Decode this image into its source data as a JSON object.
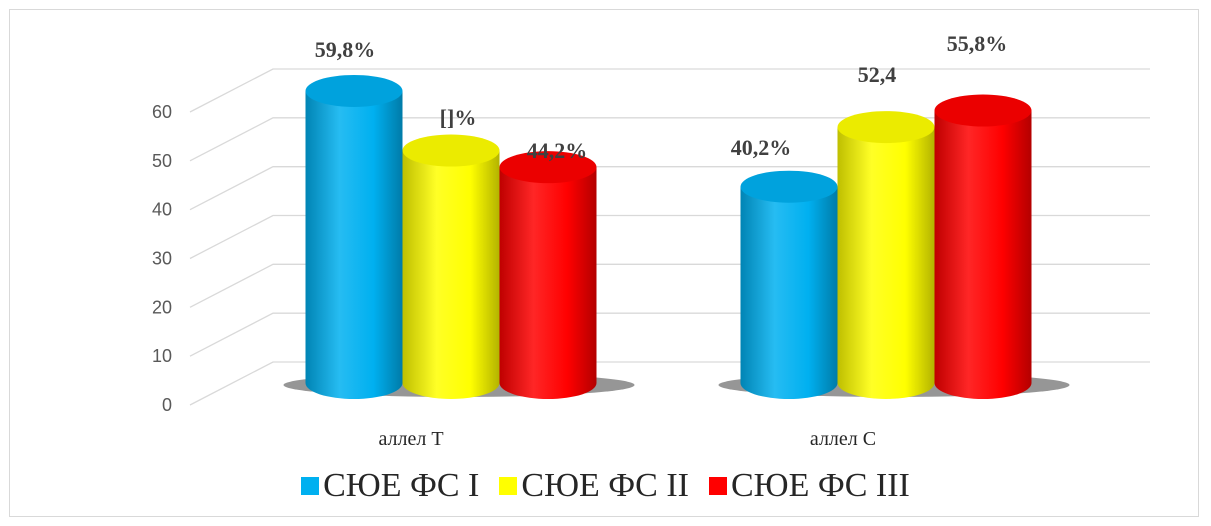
{
  "chart_data": {
    "type": "bar",
    "style": "3d-cylinder",
    "categories": [
      "аллел Т",
      "аллел С"
    ],
    "series": [
      {
        "name": "СЮЕ ФС I",
        "color": "#00b0f0",
        "values": [
          59.8,
          40.2
        ],
        "labels": [
          "59,8%",
          "40,2%"
        ]
      },
      {
        "name": "СЮЕ ФС II",
        "color": "#ffff00",
        "values": [
          47.6,
          52.4
        ],
        "labels": [
          "[]%",
          "52,4"
        ]
      },
      {
        "name": "СЮЕ ФС III",
        "color": "#ff0000",
        "values": [
          44.2,
          55.8
        ],
        "labels": [
          "44,2%",
          "55,8%"
        ]
      }
    ],
    "yticks": [
      0,
      10,
      20,
      30,
      40,
      50,
      60
    ],
    "ylim": [
      0,
      60
    ],
    "grid": true,
    "legend_position": "bottom",
    "title": "",
    "xlabel": "",
    "ylabel": ""
  }
}
